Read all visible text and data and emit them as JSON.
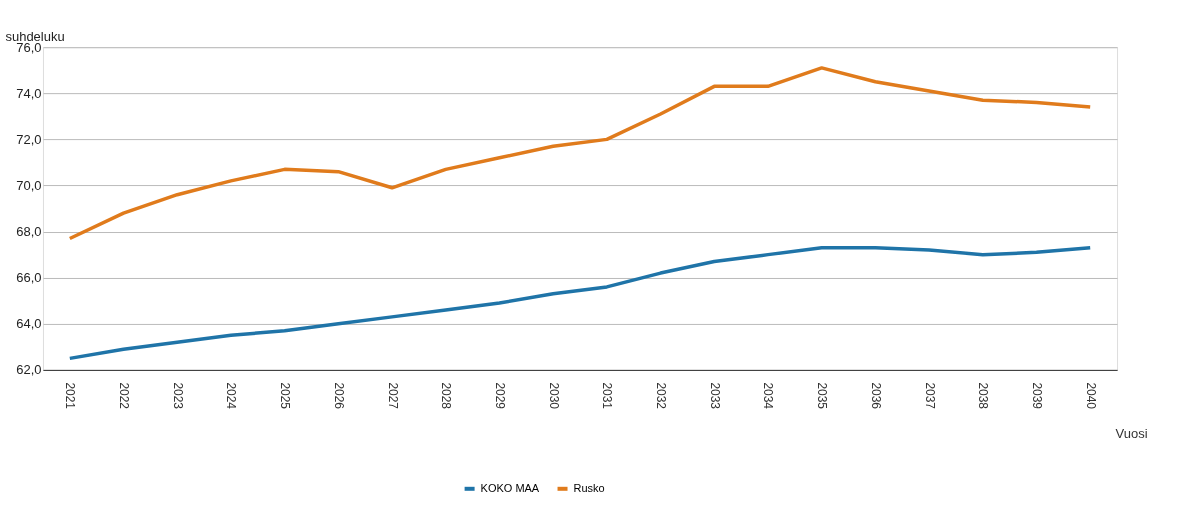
{
  "chart_data": {
    "type": "line",
    "xlabel": "Vuosi",
    "ylabel": "suhdeluku",
    "categories": [
      "2021",
      "2022",
      "2023",
      "2024",
      "2025",
      "2026",
      "2027",
      "2028",
      "2029",
      "2030",
      "2031",
      "2032",
      "2033",
      "2034",
      "2035",
      "2036",
      "2037",
      "2038",
      "2039",
      "2040"
    ],
    "series": [
      {
        "name": "KOKO MAA",
        "color": "#1f74a8",
        "values": [
          62.5,
          62.9,
          63.2,
          63.5,
          63.7,
          64.0,
          64.3,
          64.6,
          64.9,
          65.3,
          65.6,
          66.2,
          66.7,
          67.0,
          67.3,
          67.3,
          67.2,
          67.0,
          67.1,
          67.3
        ]
      },
      {
        "name": "Rusko",
        "color": "#e07b1c",
        "values": [
          67.7,
          68.8,
          69.6,
          70.2,
          70.7,
          70.6,
          69.9,
          70.7,
          71.2,
          71.7,
          72.0,
          73.1,
          74.3,
          74.3,
          75.1,
          74.5,
          74.1,
          73.7,
          73.6,
          73.4
        ]
      }
    ],
    "ylim": [
      62,
      76
    ],
    "yticks": [
      {
        "value": 62,
        "label": "62,0"
      },
      {
        "value": 64,
        "label": "64,0"
      },
      {
        "value": 66,
        "label": "66,0"
      },
      {
        "value": 68,
        "label": "68,0"
      },
      {
        "value": 70,
        "label": "70,0"
      },
      {
        "value": 72,
        "label": "72,0"
      },
      {
        "value": 74,
        "label": "74,0"
      },
      {
        "value": 76,
        "label": "76,0"
      }
    ],
    "grid": "y",
    "legend": "bottom",
    "marker": "none",
    "line_style": "solid"
  }
}
